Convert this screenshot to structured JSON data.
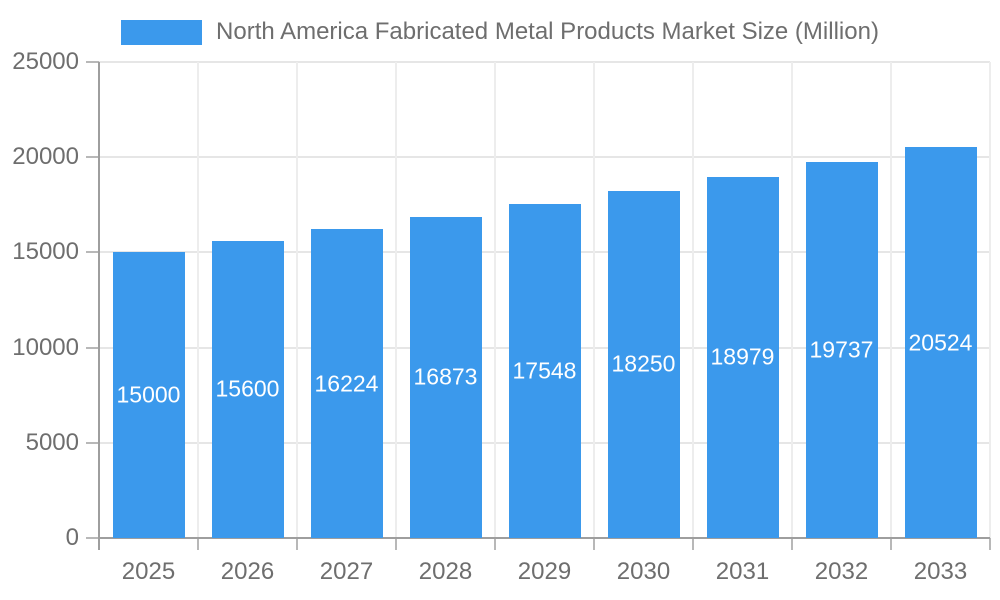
{
  "chart_data": {
    "type": "bar",
    "title": "North America Fabricated Metal Products Market Size (Million)",
    "categories": [
      "2025",
      "2026",
      "2027",
      "2028",
      "2029",
      "2030",
      "2031",
      "2032",
      "2033"
    ],
    "values": [
      15000,
      15600,
      16224,
      16873,
      17548,
      18250,
      18979,
      19737,
      20524
    ],
    "xlabel": "",
    "ylabel": "",
    "ylim": [
      0,
      25000
    ],
    "yticks": [
      0,
      5000,
      10000,
      15000,
      20000,
      25000
    ],
    "grid": true,
    "legend_position": "top-center",
    "value_labels": "inside-center-white",
    "colors": {
      "bar": "#3B99EC",
      "bar_label": "#FFFFFF",
      "axis_text": "#6E6E6E",
      "title_text": "#6E6E6E",
      "axis_line": "#9E9E9E",
      "tick": "#B8B8B8",
      "gridline_h": "#E6E6E6",
      "gridline_v": "#EDEDED",
      "background": "#FFFFFF"
    }
  }
}
